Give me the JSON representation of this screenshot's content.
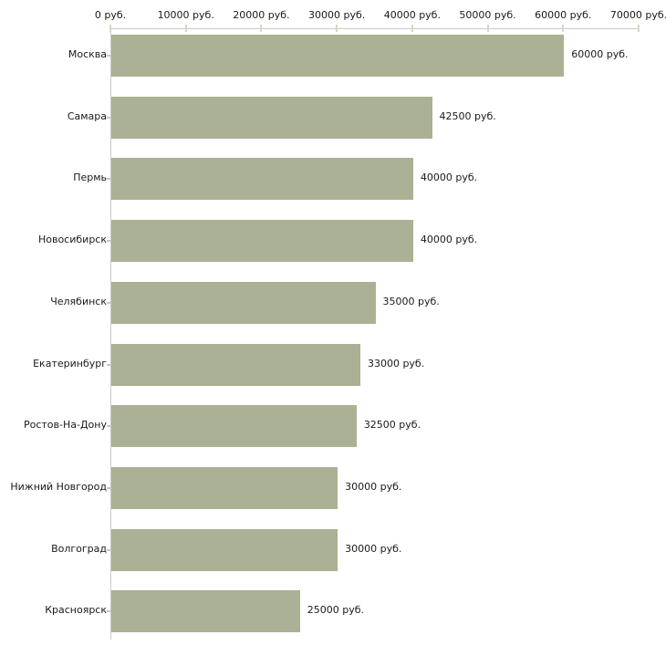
{
  "chart_data": {
    "type": "bar",
    "orientation": "horizontal",
    "title": "",
    "xlabel": "",
    "ylabel": "",
    "categories": [
      "Москва",
      "Самара",
      "Пермь",
      "Новосибирск",
      "Челябинск",
      "Екатеринбург",
      "Ростов-На-Дону",
      "Нижний Новгород",
      "Волгоград",
      "Красноярск"
    ],
    "values": [
      60000,
      42500,
      40000,
      40000,
      35000,
      33000,
      32500,
      30000,
      30000,
      25000
    ],
    "value_labels": [
      "60000 руб.",
      "42500 руб.",
      "40000 руб.",
      "40000 руб.",
      "35000 руб.",
      "33000 руб.",
      "32500 руб.",
      "30000 руб.",
      "30000 руб.",
      "25000 руб."
    ],
    "x_tick_values": [
      0,
      10000,
      20000,
      30000,
      40000,
      50000,
      60000,
      70000
    ],
    "x_tick_labels": [
      "0 руб.",
      "10000 руб.",
      "20000 руб.",
      "30000 руб.",
      "40000 руб.",
      "50000 руб.",
      "60000 руб.",
      "70000 руб."
    ],
    "xlim": [
      0,
      70000
    ],
    "axis_position": "top",
    "grid": false,
    "legend": null,
    "colors": {
      "bar": "#abb194",
      "axis_line": "#c9c9c9",
      "axis_tick": "#d5d8be",
      "category_tick": "#c9ccb4",
      "text": "#1a1a1a",
      "background": "#ffffff"
    }
  }
}
